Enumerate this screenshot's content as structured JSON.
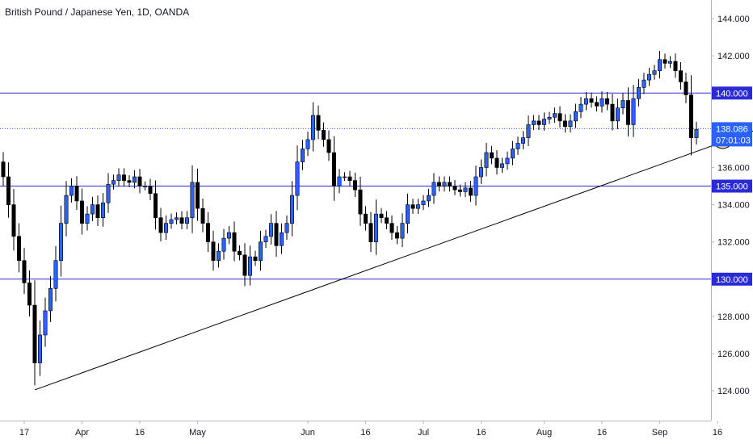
{
  "header": {
    "title": "British Pound / Japanese Yen, 1D, OANDA"
  },
  "colors": {
    "up_fill": "#2962ff",
    "down_fill": "#000000",
    "wick": "#000000",
    "hline": "#2b2bd6",
    "trend": "#000000",
    "price_tag": "#2962ff",
    "axis_border": "#b2b5be",
    "circle_fill": "#f7e28a"
  },
  "chart_data": {
    "type": "candlestick",
    "ylim": [
      122.4,
      145.0
    ],
    "y_ticks": [
      124,
      126,
      128,
      130,
      132,
      134,
      136,
      138,
      140,
      142,
      144
    ],
    "y_tick_labels": [
      "124.000",
      "126.000",
      "128.000",
      "130.000",
      "132.000",
      "134.000",
      "136.000",
      "138.000",
      "140.000",
      "142.000",
      "144.000"
    ],
    "x_ticks": [
      {
        "label": "17",
        "i": 4
      },
      {
        "label": "Apr",
        "i": 15
      },
      {
        "label": "16",
        "i": 26
      },
      {
        "label": "May",
        "i": 37
      },
      {
        "label": "Jun",
        "i": 58
      },
      {
        "label": "16",
        "i": 69
      },
      {
        "label": "Jul",
        "i": 80
      },
      {
        "label": "16",
        "i": 91
      },
      {
        "label": "Aug",
        "i": 103
      },
      {
        "label": "16",
        "i": 114
      },
      {
        "label": "Sep",
        "i": 125
      },
      {
        "label": "16",
        "i": 136
      }
    ],
    "closes": [
      135.5,
      134.0,
      132.3,
      131.0,
      129.8,
      128.6,
      125.5,
      127.0,
      128.3,
      129.5,
      131.0,
      133.0,
      134.5,
      135.0,
      134.2,
      133.0,
      133.5,
      134.0,
      133.3,
      134.1,
      135.1,
      135.3,
      135.6,
      135.3,
      135.2,
      135.5,
      135.0,
      135.0,
      134.6,
      133.3,
      132.5,
      133.0,
      133.2,
      133.3,
      133.0,
      133.3,
      135.2,
      133.8,
      133.0,
      132.0,
      131.0,
      131.5,
      132.2,
      132.5,
      131.5,
      131.3,
      130.2,
      131.2,
      131.0,
      132.0,
      132.3,
      133.0,
      131.8,
      132.5,
      133.0,
      134.5,
      136.3,
      137.0,
      137.5,
      138.8,
      138.0,
      137.5,
      136.8,
      135.0,
      135.5,
      135.5,
      135.3,
      134.8,
      133.5,
      133.0,
      132.0,
      133.5,
      133.3,
      133.0,
      132.5,
      132.2,
      133.0,
      134.0,
      133.8,
      134.0,
      134.2,
      134.5,
      135.2,
      135.0,
      135.2,
      135.0,
      134.8,
      134.7,
      134.9,
      134.5,
      135.5,
      136.0,
      136.8,
      136.5,
      136.0,
      136.2,
      136.5,
      137.0,
      137.3,
      137.6,
      138.3,
      138.5,
      138.3,
      138.6,
      138.7,
      138.9,
      138.5,
      138.2,
      138.5,
      139.0,
      139.4,
      139.7,
      139.5,
      139.3,
      139.7,
      139.4,
      138.5,
      139.2,
      139.6,
      138.3,
      139.7,
      140.3,
      140.7,
      141.0,
      141.2,
      141.8,
      141.6,
      141.7,
      141.2,
      140.6,
      139.9,
      137.6,
      138.05
    ],
    "start_open": 136.3,
    "hlines": [
      {
        "value": 140.0,
        "label": "140.000"
      },
      {
        "value": 135.0,
        "label": "135.000"
      },
      {
        "value": 130.0,
        "label": "130.000"
      }
    ],
    "trendline": {
      "i1": 6,
      "y1": 124.05,
      "i2": 154,
      "y2": 139.1
    },
    "last_price": {
      "value": 138.086,
      "label": "138.086",
      "countdown": "07:01:03"
    },
    "marker": {
      "i": 137,
      "y": 137.5
    }
  }
}
